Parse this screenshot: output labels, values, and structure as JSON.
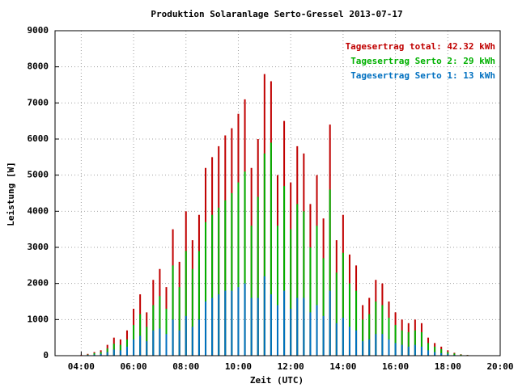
{
  "chart_data": {
    "type": "impulse",
    "title": "Produktion Solaranlage Serto-Gressel 2013-07-17",
    "x_label": "Zeit (UTC)",
    "y_label": "Leistung [W]",
    "x": [
      4,
      4.25,
      4.5,
      4.75,
      5,
      5.25,
      5.5,
      5.75,
      6,
      6.25,
      6.5,
      6.75,
      7,
      7.25,
      7.5,
      7.75,
      8,
      8.25,
      8.5,
      8.75,
      9,
      9.25,
      9.5,
      9.75,
      10,
      10.25,
      10.5,
      10.75,
      11,
      11.25,
      11.5,
      11.75,
      12,
      12.25,
      12.5,
      12.75,
      13,
      13.25,
      13.5,
      13.75,
      14,
      14.25,
      14.5,
      14.75,
      15,
      15.25,
      15.5,
      15.75,
      16,
      16.25,
      16.5,
      16.75,
      17,
      17.25,
      17.5,
      17.75,
      18,
      18.25,
      18.5,
      18.75,
      19
    ],
    "series": [
      {
        "name": "Tagesertrag total: 42.32 kWh",
        "color": "#c00000",
        "values": [
          20,
          50,
          100,
          150,
          300,
          500,
          450,
          700,
          1300,
          1700,
          1200,
          2100,
          2400,
          1900,
          3500,
          2600,
          4000,
          3200,
          3900,
          5200,
          5500,
          5800,
          6100,
          6300,
          6700,
          7100,
          5200,
          6000,
          7800,
          7600,
          5000,
          6500,
          4800,
          5800,
          5600,
          4200,
          5000,
          3800,
          6400,
          3200,
          3900,
          2800,
          2500,
          1400,
          1600,
          2100,
          2000,
          1500,
          1200,
          1000,
          900,
          1000,
          900,
          500,
          350,
          250,
          150,
          80,
          40,
          20,
          10
        ]
      },
      {
        "name": "Tagesertrag Serto 2: 29 kWh",
        "color": "#00b000",
        "values": [
          10,
          30,
          70,
          100,
          200,
          330,
          300,
          450,
          850,
          1150,
          800,
          1400,
          1650,
          1300,
          2500,
          1900,
          2900,
          2400,
          2900,
          3700,
          3900,
          4100,
          4300,
          4500,
          4800,
          5100,
          3600,
          4400,
          5600,
          5900,
          3600,
          4700,
          3500,
          4200,
          4000,
          3000,
          3600,
          2700,
          4600,
          2300,
          2850,
          2000,
          1800,
          1000,
          1150,
          1500,
          1400,
          1050,
          850,
          700,
          650,
          700,
          650,
          350,
          250,
          180,
          100,
          60,
          30,
          15,
          8
        ]
      },
      {
        "name": "Tagesertrag Serto 1: 13 kWh",
        "color": "#0070c0",
        "values": [
          10,
          20,
          30,
          50,
          100,
          170,
          150,
          250,
          450,
          550,
          400,
          700,
          750,
          600,
          1000,
          700,
          1100,
          800,
          1000,
          1500,
          1600,
          1700,
          1800,
          1800,
          1900,
          2000,
          1600,
          1600,
          2200,
          1700,
          1400,
          1800,
          1300,
          1600,
          1600,
          1200,
          1400,
          1100,
          1800,
          900,
          1050,
          800,
          700,
          400,
          450,
          600,
          600,
          450,
          350,
          300,
          250,
          300,
          250,
          150,
          100,
          70,
          50,
          20,
          10,
          5,
          2
        ]
      }
    ],
    "xlim": [
      3,
      20
    ],
    "xticks": [
      {
        "value": 4,
        "label": "04:00"
      },
      {
        "value": 6,
        "label": "06:00"
      },
      {
        "value": 8,
        "label": "08:00"
      },
      {
        "value": 10,
        "label": "10:00"
      },
      {
        "value": 12,
        "label": "12:00"
      },
      {
        "value": 14,
        "label": "14:00"
      },
      {
        "value": 16,
        "label": "16:00"
      },
      {
        "value": 18,
        "label": "18:00"
      },
      {
        "value": 20,
        "label": "20:00"
      }
    ],
    "ylim": [
      0,
      9000
    ],
    "yticks": [
      0,
      1000,
      2000,
      3000,
      4000,
      5000,
      6000,
      7000,
      8000,
      9000
    ],
    "grid": true,
    "legend": "top-right"
  }
}
